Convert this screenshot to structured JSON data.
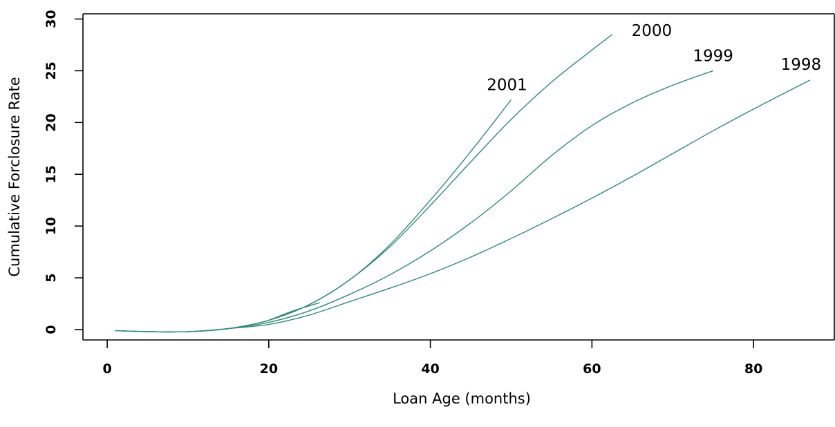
{
  "chart_data": {
    "type": "line",
    "title": "",
    "xlabel": "Loan Age (months)",
    "ylabel": "Cumulative Forclosure Rate",
    "xlim": [
      -3,
      90
    ],
    "ylim": [
      -1,
      30.5
    ],
    "xticks": [
      0,
      20,
      40,
      60,
      80
    ],
    "yticks": [
      0,
      5,
      10,
      15,
      20,
      25,
      30
    ],
    "grid": false,
    "legend": "none",
    "line_color": "#2e8b7a",
    "series": [
      {
        "name": "2001",
        "x": [
          1,
          5,
          10,
          15,
          20,
          25,
          30,
          35,
          40,
          45,
          50
        ],
        "y": [
          -0.1,
          -0.2,
          -0.2,
          0.1,
          0.9,
          2.4,
          4.8,
          8.2,
          12.5,
          17.2,
          22.2
        ]
      },
      {
        "name": "2000",
        "x": [
          1,
          5,
          10,
          15,
          20,
          25,
          30,
          35,
          40,
          45,
          50,
          55,
          60,
          62.5
        ],
        "y": [
          -0.1,
          -0.2,
          -0.2,
          0.1,
          0.9,
          2.4,
          4.8,
          8.0,
          12.0,
          16.2,
          20.3,
          23.9,
          27.0,
          28.5
        ]
      },
      {
        "name": "1999",
        "x": [
          1,
          5,
          10,
          15,
          20,
          25,
          30,
          35,
          40,
          45,
          50,
          55,
          60,
          65,
          70,
          75
        ],
        "y": [
          -0.1,
          -0.2,
          -0.2,
          0.1,
          0.7,
          1.8,
          3.4,
          5.3,
          7.6,
          10.3,
          13.4,
          16.8,
          19.7,
          21.9,
          23.6,
          25.0
        ]
      },
      {
        "name": "1998",
        "x": [
          1,
          5,
          10,
          15,
          20,
          25,
          30,
          35,
          40,
          45,
          50,
          55,
          60,
          65,
          70,
          75,
          80,
          87
        ],
        "y": [
          -0.1,
          -0.2,
          -0.2,
          0.1,
          0.5,
          1.4,
          2.7,
          4.0,
          5.4,
          7.0,
          8.8,
          10.7,
          12.7,
          14.8,
          17.0,
          19.2,
          21.3,
          24.1
        ]
      },
      {
        "name": "",
        "x": [
          20,
          23,
          26.3
        ],
        "y": [
          0.9,
          1.8,
          2.6
        ]
      }
    ]
  }
}
